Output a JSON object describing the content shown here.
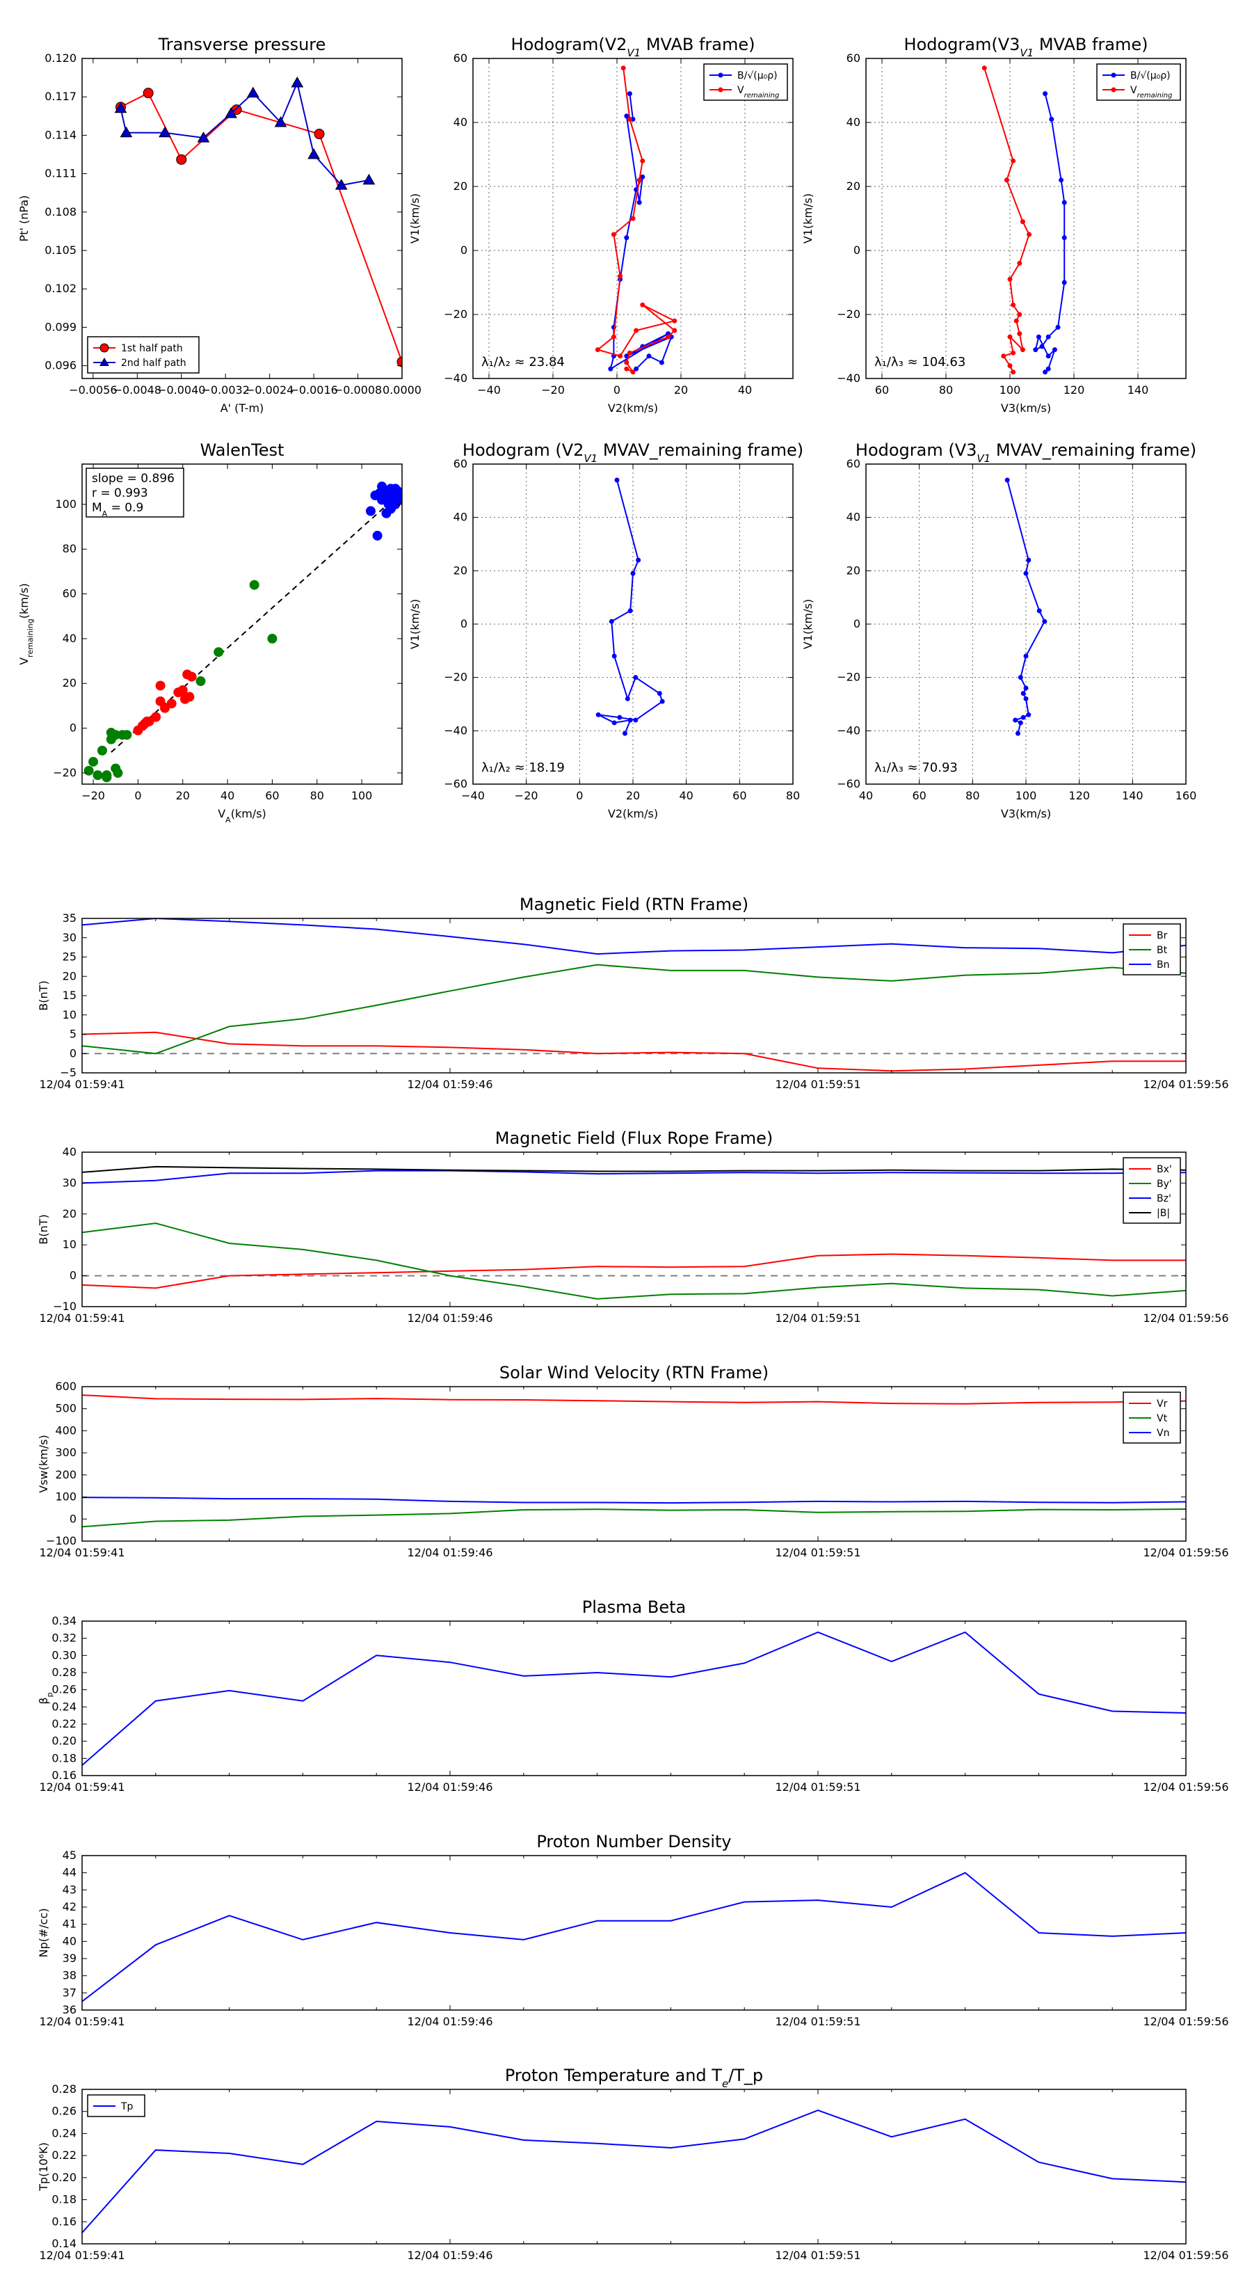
{
  "time_labels": [
    "12/04 01:59:41",
    "12/04 01:59:46",
    "12/04 01:59:51",
    "12/04 01:59:56"
  ],
  "chart_data": [
    {
      "id": "transverse_pressure",
      "type": "line",
      "title": "Transverse pressure",
      "xlabel": "A' (T-m)",
      "ylabel": "Pt' (nPa)",
      "xlim": [
        -0.0058,
        0.0
      ],
      "ylim": [
        0.095,
        0.12
      ],
      "xticks": [
        -0.0056,
        -0.0048,
        -0.004,
        -0.0032,
        -0.0024,
        -0.0016,
        -0.0008,
        0.0
      ],
      "xtick_labels": [
        "−0.0056",
        "−0.0048",
        "−0.0040",
        "−0.0032",
        "−0.0024",
        "−0.0016",
        "−0.0008",
        "0.0000"
      ],
      "yticks": [
        0.096,
        0.099,
        0.102,
        0.105,
        0.108,
        0.111,
        0.114,
        0.117,
        0.12
      ],
      "ytick_labels": [
        "0.096",
        "0.099",
        "0.102",
        "0.105",
        "0.108",
        "0.111",
        "0.114",
        "0.117",
        "0.120"
      ],
      "grid": false,
      "legend": "lower-left",
      "series": [
        {
          "name": "1st half path",
          "color": "#ff0000",
          "marker": "circle",
          "x": [
            -0.0051,
            -0.0046,
            -0.004,
            -0.003,
            -0.0015,
            0.0
          ],
          "y": [
            0.1162,
            0.1173,
            0.1121,
            0.116,
            0.1141,
            0.0963
          ]
        },
        {
          "name": "2nd half path",
          "color": "#0000cc",
          "marker": "triangle",
          "x": [
            -0.0051,
            -0.005,
            -0.0043,
            -0.0036,
            -0.0031,
            -0.0027,
            -0.0022,
            -0.0019,
            -0.0016,
            -0.0011,
            -0.0006
          ],
          "y": [
            0.1161,
            0.1142,
            0.1142,
            0.1138,
            0.1157,
            0.1173,
            0.115,
            0.1181,
            0.1125,
            0.1101,
            0.1105
          ]
        }
      ]
    },
    {
      "id": "hodogram_v2v1_mvab",
      "type": "line",
      "title": "Hodogram(V2_V1 MVAB frame)",
      "xlabel": "V2(km/s)",
      "ylabel": "V1(km/s)",
      "xlim": [
        -45,
        55
      ],
      "ylim": [
        -40,
        60
      ],
      "xticks": [
        -40,
        -20,
        0,
        20,
        40
      ],
      "yticks": [
        -40,
        -20,
        0,
        20,
        40,
        60
      ],
      "grid": true,
      "legend": "top-right",
      "annotation": "λ₁/λ₂ ≈ 23.84",
      "series": [
        {
          "name": "B/√(μ₀ρ)",
          "color": "#0000ff",
          "x": [
            4,
            5,
            3,
            7,
            8,
            6,
            3,
            1,
            -1,
            -1,
            -2,
            16,
            8,
            3,
            17,
            14,
            10,
            6
          ],
          "y": [
            49,
            41,
            42,
            15,
            23,
            19,
            4,
            -9,
            -24,
            -33,
            -37,
            -26,
            -30,
            -33,
            -27,
            -35,
            -33,
            -37
          ]
        },
        {
          "name": "V_remaining",
          "color": "#ff0000",
          "x": [
            2,
            4,
            8,
            7,
            5,
            -1,
            1,
            -1,
            -6,
            1,
            6,
            18,
            8,
            18,
            16,
            4,
            3,
            5,
            3
          ],
          "y": [
            57,
            41,
            28,
            22,
            10,
            5,
            -8,
            -27,
            -31,
            -33,
            -25,
            -22,
            -17,
            -25,
            -27,
            -32,
            -35,
            -38,
            -37
          ]
        }
      ]
    },
    {
      "id": "hodogram_v3v1_mvab",
      "type": "line",
      "title": "Hodogram(V3_V1 MVAB frame)",
      "xlabel": "V3(km/s)",
      "ylabel": "V1(km/s)",
      "xlim": [
        55,
        155
      ],
      "ylim": [
        -40,
        60
      ],
      "xticks": [
        60,
        80,
        100,
        120,
        140
      ],
      "yticks": [
        -40,
        -20,
        0,
        20,
        40,
        60
      ],
      "grid": true,
      "legend": "top-right",
      "annotation": "λ₁/λ₃ ≈ 104.63",
      "series": [
        {
          "name": "B/√(μ₀ρ)",
          "color": "#0000ff",
          "x": [
            111,
            113,
            116,
            117,
            117,
            117,
            115,
            112,
            110,
            108,
            109,
            112,
            114,
            112,
            111
          ],
          "y": [
            49,
            41,
            22,
            15,
            4,
            -10,
            -24,
            -27,
            -30,
            -31,
            -27,
            -33,
            -31,
            -37,
            -38
          ]
        },
        {
          "name": "V_remaining",
          "color": "#ff0000",
          "x": [
            92,
            101,
            99,
            104,
            106,
            103,
            100,
            101,
            103,
            102,
            103,
            104,
            100,
            101,
            98,
            100,
            101
          ],
          "y": [
            57,
            28,
            22,
            9,
            5,
            -4,
            -9,
            -17,
            -20,
            -22,
            -26,
            -31,
            -27,
            -32,
            -33,
            -36,
            -38
          ]
        }
      ]
    },
    {
      "id": "walen_test",
      "type": "scatter",
      "title": "WalenTest",
      "xlabel": "V_A(km/s)",
      "ylabel": "V_remaining(km/s)",
      "xlim": [
        -25,
        118
      ],
      "ylim": [
        -25,
        118
      ],
      "xticks": [
        -20,
        0,
        20,
        40,
        60,
        80,
        100
      ],
      "yticks": [
        -20,
        0,
        20,
        40,
        60,
        80,
        100
      ],
      "grid": false,
      "annotation": [
        "slope = 0.896",
        "r = 0.993",
        "M_A = 0.9"
      ],
      "fit": {
        "slope": 0.896,
        "intercept": 0
      },
      "series": [
        {
          "color": "#008000",
          "x": [
            -22,
            -20,
            -18,
            -16,
            -14,
            -12,
            -10,
            -9,
            -7,
            -5,
            -12,
            -10,
            36,
            52,
            60,
            28,
            -14
          ],
          "y": [
            -19,
            -15,
            -21,
            -10,
            -22,
            -5,
            -3,
            -20,
            -3,
            -3,
            -2,
            -18,
            34,
            64,
            40,
            21,
            -21
          ]
        },
        {
          "color": "#ff0000",
          "x": [
            0,
            2,
            3,
            5,
            8,
            10,
            10,
            12,
            15,
            18,
            20,
            22,
            23,
            24,
            4,
            21
          ],
          "y": [
            -1,
            1,
            2,
            3,
            5,
            12,
            19,
            9,
            11,
            16,
            17,
            24,
            14,
            23,
            3,
            13
          ]
        },
        {
          "color": "#0000ff",
          "x": [
            104,
            106,
            108,
            109,
            110,
            111,
            112,
            112,
            113,
            113,
            114,
            114,
            115,
            115,
            116,
            116,
            117,
            109,
            107,
            113,
            111
          ],
          "y": [
            97,
            104,
            105,
            102,
            103,
            106,
            100,
            104,
            107,
            101,
            103,
            105,
            107,
            100,
            104,
            106,
            102,
            108,
            86,
            98,
            96
          ]
        }
      ]
    },
    {
      "id": "hodogram_v2v1_mvav",
      "type": "line",
      "title": "Hodogram (V2_V1 MVAV_remaining frame)",
      "xlabel": "V2(km/s)",
      "ylabel": "V1(km/s)",
      "xlim": [
        -40,
        80
      ],
      "ylim": [
        -60,
        60
      ],
      "xticks": [
        -40,
        -20,
        0,
        20,
        40,
        60,
        80
      ],
      "yticks": [
        -60,
        -40,
        -20,
        0,
        20,
        40,
        60
      ],
      "grid": true,
      "annotation": "λ₁/λ₂ ≈ 18.19",
      "series": [
        {
          "color": "#0000ff",
          "x": [
            14,
            22,
            20,
            19,
            12,
            13,
            18,
            21,
            30,
            31,
            21,
            15,
            7,
            13,
            19,
            17
          ],
          "y": [
            54,
            24,
            19,
            5,
            1,
            -12,
            -28,
            -20,
            -26,
            -29,
            -36,
            -35,
            -34,
            -37,
            -36,
            -41
          ]
        }
      ]
    },
    {
      "id": "hodogram_v3v1_mvav",
      "type": "line",
      "title": "Hodogram (V3_V1 MVAV_remaining frame)",
      "xlabel": "V3(km/s)",
      "ylabel": "V1(km/s)",
      "xlim": [
        40,
        160
      ],
      "ylim": [
        -60,
        60
      ],
      "xticks": [
        40,
        60,
        80,
        100,
        120,
        140,
        160
      ],
      "yticks": [
        -60,
        -40,
        -20,
        0,
        20,
        40,
        60
      ],
      "grid": true,
      "annotation": "λ₁/λ₃ ≈ 70.93",
      "series": [
        {
          "color": "#0000ff",
          "x": [
            93,
            101,
            100,
            105,
            107,
            100,
            98,
            100,
            99,
            100,
            101,
            99,
            96,
            98,
            97
          ],
          "y": [
            54,
            24,
            19,
            5,
            1,
            -12,
            -20,
            -24,
            -26,
            -28,
            -34,
            -35,
            -36,
            -37,
            -41
          ]
        }
      ]
    },
    {
      "id": "mag_rtn",
      "type": "line",
      "title": "Magnetic Field (RTN Frame)",
      "ylabel": "B(nT)",
      "xlim": [
        0,
        15
      ],
      "ylim": [
        -5,
        35
      ],
      "yticks": [
        -5,
        0,
        5,
        10,
        15,
        20,
        25,
        30,
        35
      ],
      "grid": false,
      "legend": "top-right",
      "zero_line": true,
      "series": [
        {
          "name": "Br",
          "color": "#ff0000",
          "y": [
            5.0,
            5.5,
            2.5,
            2.0,
            2.0,
            1.6,
            1.0,
            0.0,
            0.3,
            0.0,
            -3.8,
            -4.5,
            -4.0,
            -3.0,
            -2.0,
            -2.0
          ]
        },
        {
          "name": "Bt",
          "color": "#008000",
          "y": [
            2.0,
            0.0,
            7.0,
            9.0,
            12.5,
            16.2,
            19.8,
            23.0,
            21.5,
            21.5,
            19.8,
            18.8,
            20.3,
            20.8,
            22.3,
            20.8
          ]
        },
        {
          "name": "Bn",
          "color": "#0000ff",
          "y": [
            33.3,
            35.0,
            34.2,
            33.3,
            32.2,
            30.3,
            28.3,
            25.8,
            26.6,
            26.8,
            27.6,
            28.4,
            27.4,
            27.2,
            26.1,
            28.0
          ]
        }
      ]
    },
    {
      "id": "mag_fluxrope",
      "type": "line",
      "title": "Magnetic Field (Flux Rope Frame)",
      "ylabel": "B(nT)",
      "xlim": [
        0,
        15
      ],
      "ylim": [
        -10,
        40
      ],
      "yticks": [
        -10,
        0,
        10,
        20,
        30,
        40
      ],
      "grid": false,
      "legend": "top-right",
      "zero_line": true,
      "series": [
        {
          "name": "Bx'",
          "color": "#ff0000",
          "y": [
            -3.0,
            -4.0,
            0.0,
            0.5,
            1.0,
            1.5,
            2.0,
            3.0,
            2.8,
            3.0,
            6.5,
            7.0,
            6.5,
            5.8,
            5.0,
            5.0
          ]
        },
        {
          "name": "By'",
          "color": "#008000",
          "y": [
            14.0,
            17.0,
            10.5,
            8.5,
            5.0,
            0.0,
            -3.5,
            -7.5,
            -6.0,
            -5.8,
            -3.8,
            -2.5,
            -4.0,
            -4.5,
            -6.5,
            -4.8
          ]
        },
        {
          "name": "Bz'",
          "color": "#0000ff",
          "y": [
            30.0,
            30.8,
            33.2,
            33.2,
            34.0,
            34.0,
            33.6,
            33.0,
            33.2,
            33.4,
            33.2,
            33.4,
            33.3,
            33.2,
            33.2,
            33.4
          ]
        },
        {
          "name": "|B|",
          "color": "#000000",
          "y": [
            33.5,
            35.3,
            35.0,
            34.7,
            34.5,
            34.2,
            34.0,
            33.8,
            33.8,
            34.0,
            34.0,
            34.2,
            34.0,
            34.0,
            34.5,
            34.2
          ]
        }
      ]
    },
    {
      "id": "sw_velocity",
      "type": "line",
      "title": "Solar Wind Velocity (RTN Frame)",
      "ylabel": "Vsw(km/s)",
      "xlim": [
        0,
        15
      ],
      "ylim": [
        -100,
        600
      ],
      "yticks": [
        -100,
        0,
        100,
        200,
        300,
        400,
        500,
        600
      ],
      "grid": false,
      "legend": "top-right",
      "series": [
        {
          "name": "Vr",
          "color": "#ff0000",
          "y": [
            562,
            545,
            543,
            542,
            546,
            541,
            540,
            536,
            532,
            528,
            532,
            524,
            522,
            528,
            530,
            535
          ]
        },
        {
          "name": "Vt",
          "color": "#008000",
          "y": [
            -35,
            -10,
            -5,
            12,
            18,
            25,
            42,
            44,
            40,
            42,
            30,
            33,
            35,
            43,
            42,
            45
          ]
        },
        {
          "name": "Vn",
          "color": "#0000ff",
          "y": [
            98,
            96,
            92,
            92,
            90,
            80,
            75,
            75,
            73,
            76,
            80,
            78,
            80,
            76,
            74,
            78
          ]
        }
      ]
    },
    {
      "id": "plasma_beta",
      "type": "line",
      "title": "Plasma Beta",
      "ylabel": "β_p",
      "xlim": [
        0,
        15
      ],
      "ylim": [
        0.16,
        0.34
      ],
      "yticks": [
        0.16,
        0.18,
        0.2,
        0.22,
        0.24,
        0.26,
        0.28,
        0.3,
        0.32,
        0.34
      ],
      "grid": false,
      "series": [
        {
          "color": "#0000ff",
          "y": [
            0.172,
            0.247,
            0.259,
            0.247,
            0.3,
            0.292,
            0.276,
            0.28,
            0.275,
            0.291,
            0.327,
            0.293,
            0.327,
            0.255,
            0.235,
            0.233
          ]
        }
      ]
    },
    {
      "id": "proton_density",
      "type": "line",
      "title": "Proton Number Density",
      "ylabel": "Np(#/cc)",
      "xlim": [
        0,
        15
      ],
      "ylim": [
        36,
        45
      ],
      "yticks": [
        36,
        37,
        38,
        39,
        40,
        41,
        42,
        43,
        44,
        45
      ],
      "grid": false,
      "series": [
        {
          "color": "#0000ff",
          "y": [
            36.5,
            39.8,
            41.5,
            40.1,
            41.1,
            40.5,
            40.1,
            41.2,
            41.2,
            42.3,
            42.4,
            42.0,
            44.0,
            40.5,
            40.3,
            40.5
          ]
        }
      ]
    },
    {
      "id": "proton_temperature",
      "type": "line",
      "title": "Proton Temperature and T_e/T_p",
      "ylabel": "Tp(10⁶K)",
      "xlim": [
        0,
        15
      ],
      "ylim": [
        0.14,
        0.28
      ],
      "yticks": [
        0.14,
        0.16,
        0.18,
        0.2,
        0.22,
        0.24,
        0.26,
        0.28
      ],
      "grid": false,
      "legend": "top-left",
      "series": [
        {
          "name": "Tp",
          "color": "#0000ff",
          "y": [
            0.15,
            0.225,
            0.222,
            0.212,
            0.251,
            0.246,
            0.234,
            0.231,
            0.227,
            0.235,
            0.261,
            0.237,
            0.253,
            0.214,
            0.199,
            0.196
          ]
        }
      ]
    }
  ]
}
